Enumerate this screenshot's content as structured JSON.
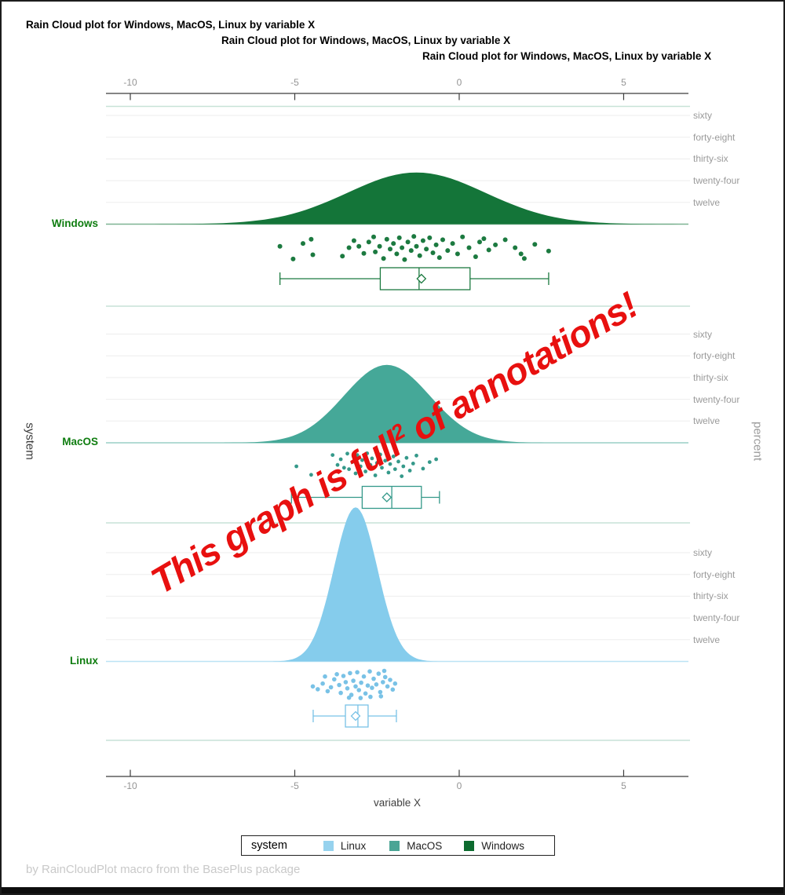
{
  "titles": [
    "Rain Cloud plot for Windows, MacOS, Linux by variable X",
    "Rain Cloud plot for Windows, MacOS, Linux by variable X",
    "Rain Cloud plot for Windows, MacOS, Linux by variable X"
  ],
  "annotation": {
    "prefix": "This graph is full",
    "sup": "2",
    "suffix": " of annotations!",
    "color": "#e8100f"
  },
  "legend": {
    "title": "system",
    "items": [
      {
        "label": "Linux",
        "color": "#96d2ee"
      },
      {
        "label": "MacOS",
        "color": "#4aa595"
      },
      {
        "label": "Windows",
        "color": "#0d6b2f"
      }
    ]
  },
  "footer": {
    "text": "by RainCloudPlot macro from the BasePlus package"
  },
  "colors": {
    "category_label": "#0f7d10",
    "grid": "#ededed",
    "separator": "#c7e2d7",
    "axis": "#3c3c3c",
    "tick_text": "#949494"
  },
  "chart_data": {
    "type": "raincloud",
    "title": "Rain Cloud plot for Windows, MacOS, Linux by variable X",
    "x_axis": {
      "label": "variable X",
      "tick_labels": [
        "-10",
        "-5",
        "0",
        "5"
      ],
      "tick_values": [
        -10,
        -5,
        0,
        5
      ],
      "range": [
        -10.74,
        6.97
      ]
    },
    "y_axis": {
      "label": "system",
      "categories": [
        "Windows",
        "MacOS",
        "Linux"
      ]
    },
    "y2_axis": {
      "label": "percent",
      "tick_labels": [
        "sixty",
        "forty-eight",
        "thirty-six",
        "twenty-four",
        "twelve"
      ],
      "tick_values": [
        60,
        48,
        36,
        24,
        12
      ]
    },
    "legend_position": "bottom",
    "grid": true,
    "groups": [
      {
        "name": "Windows",
        "fill": "#147539",
        "stroke": "#1c7a40",
        "point_radius": 3,
        "density": {
          "mean": -1.3,
          "sd": 2.1,
          "peak_percent": 28.5
        },
        "box": {
          "whisker_low": -5.45,
          "q1": -2.4,
          "median": -1.22,
          "mean": -1.15,
          "q3": 0.33,
          "whisker_high": 2.72
        },
        "points": [
          [
            -5.45,
            0.45
          ],
          [
            -5.05,
            0.9
          ],
          [
            -4.75,
            0.35
          ],
          [
            -4.5,
            0.2
          ],
          [
            -4.45,
            0.75
          ],
          [
            -3.55,
            0.8
          ],
          [
            -3.35,
            0.5
          ],
          [
            -3.2,
            0.25
          ],
          [
            -3.05,
            0.45
          ],
          [
            -2.9,
            0.7
          ],
          [
            -2.75,
            0.3
          ],
          [
            -2.6,
            0.12
          ],
          [
            -2.55,
            0.65
          ],
          [
            -2.42,
            0.45
          ],
          [
            -2.3,
            0.88
          ],
          [
            -2.2,
            0.2
          ],
          [
            -2.1,
            0.55
          ],
          [
            -2.0,
            0.35
          ],
          [
            -1.9,
            0.72
          ],
          [
            -1.82,
            0.15
          ],
          [
            -1.74,
            0.5
          ],
          [
            -1.66,
            0.92
          ],
          [
            -1.56,
            0.3
          ],
          [
            -1.46,
            0.6
          ],
          [
            -1.38,
            0.1
          ],
          [
            -1.3,
            0.45
          ],
          [
            -1.2,
            0.78
          ],
          [
            -1.1,
            0.25
          ],
          [
            -1.0,
            0.55
          ],
          [
            -0.9,
            0.15
          ],
          [
            -0.8,
            0.68
          ],
          [
            -0.7,
            0.4
          ],
          [
            -0.6,
            0.85
          ],
          [
            -0.5,
            0.22
          ],
          [
            -0.35,
            0.6
          ],
          [
            -0.2,
            0.35
          ],
          [
            -0.05,
            0.72
          ],
          [
            0.1,
            0.12
          ],
          [
            0.3,
            0.5
          ],
          [
            0.5,
            0.82
          ],
          [
            0.62,
            0.3
          ],
          [
            0.75,
            0.18
          ],
          [
            0.9,
            0.58
          ],
          [
            1.1,
            0.4
          ],
          [
            1.4,
            0.22
          ],
          [
            1.7,
            0.5
          ],
          [
            1.88,
            0.72
          ],
          [
            1.98,
            0.88
          ],
          [
            2.3,
            0.38
          ],
          [
            2.72,
            0.62
          ]
        ]
      },
      {
        "name": "MacOS",
        "fill": "#45A898",
        "stroke": "#35998a",
        "point_radius": 2.4,
        "density": {
          "mean": -2.2,
          "sd": 1.3,
          "peak_percent": 43
        },
        "box": {
          "whisker_low": -5.1,
          "q1": -2.95,
          "median": -2.05,
          "mean": -2.2,
          "q3": -1.15,
          "whisker_high": -0.6
        },
        "points": [
          [
            -4.95,
            0.5
          ],
          [
            -4.5,
            0.8
          ],
          [
            -3.85,
            0.1
          ],
          [
            -3.7,
            0.45
          ],
          [
            -3.6,
            0.25
          ],
          [
            -3.5,
            0.55
          ],
          [
            -3.4,
            0.05
          ],
          [
            -3.35,
            0.6
          ],
          [
            -3.25,
            0.35
          ],
          [
            -3.15,
            0.75
          ],
          [
            -3.1,
            0.1
          ],
          [
            -3.0,
            0.5
          ],
          [
            -2.95,
            0.28
          ],
          [
            -2.85,
            0.68
          ],
          [
            -2.8,
            0.04
          ],
          [
            -2.7,
            0.45
          ],
          [
            -2.65,
            0.22
          ],
          [
            -2.55,
            0.82
          ],
          [
            -2.5,
            0.38
          ],
          [
            -2.4,
            0.08
          ],
          [
            -2.35,
            0.55
          ],
          [
            -2.25,
            0.3
          ],
          [
            -2.15,
            0.72
          ],
          [
            -2.1,
            0.42
          ],
          [
            -2.0,
            0.15
          ],
          [
            -1.95,
            0.6
          ],
          [
            -1.85,
            0.33
          ],
          [
            -1.75,
            0.85
          ],
          [
            -1.7,
            0.5
          ],
          [
            -1.6,
            0.2
          ],
          [
            -1.5,
            0.65
          ],
          [
            -1.4,
            0.4
          ],
          [
            -1.3,
            0.12
          ],
          [
            -1.1,
            0.58
          ],
          [
            -0.9,
            0.35
          ],
          [
            -0.7,
            0.25
          ]
        ]
      },
      {
        "name": "Linux",
        "fill": "#85CCEC",
        "stroke": "#79c2e6",
        "point_radius": 2.8,
        "density": {
          "mean": -3.15,
          "sd": 0.66,
          "peak_percent": 85
        },
        "box": {
          "whisker_low": -4.44,
          "q1": -3.46,
          "median": -3.08,
          "mean": -3.15,
          "q3": -2.77,
          "whisker_high": -1.91
        },
        "points": [
          [
            -4.45,
            0.55
          ],
          [
            -4.3,
            0.65
          ],
          [
            -4.15,
            0.45
          ],
          [
            -4.0,
            0.72
          ],
          [
            -3.9,
            0.58
          ],
          [
            -3.8,
            0.3
          ],
          [
            -3.72,
            0.12
          ],
          [
            -3.65,
            0.5
          ],
          [
            -3.6,
            0.78
          ],
          [
            -3.52,
            0.18
          ],
          [
            -3.45,
            0.4
          ],
          [
            -3.4,
            0.62
          ],
          [
            -3.32,
            0.08
          ],
          [
            -3.28,
            0.85
          ],
          [
            -3.22,
            0.35
          ],
          [
            -3.15,
            0.55
          ],
          [
            -3.1,
            0.05
          ],
          [
            -3.05,
            0.68
          ],
          [
            -2.98,
            0.42
          ],
          [
            -2.9,
            0.2
          ],
          [
            -2.85,
            0.8
          ],
          [
            -2.78,
            0.52
          ],
          [
            -2.72,
            0.02
          ],
          [
            -2.65,
            0.6
          ],
          [
            -2.6,
            0.28
          ],
          [
            -2.52,
            0.48
          ],
          [
            -2.45,
            0.1
          ],
          [
            -2.4,
            0.75
          ],
          [
            -2.32,
            0.4
          ],
          [
            -2.25,
            0.22
          ],
          [
            -2.18,
            0.55
          ],
          [
            -2.1,
            0.32
          ],
          [
            -2.02,
            0.66
          ],
          [
            -1.95,
            0.45
          ],
          [
            -3.35,
            0.95
          ],
          [
            -3.0,
            0.96
          ],
          [
            -2.7,
            0.92
          ],
          [
            -2.38,
            0.9
          ],
          [
            -4.08,
            0.2
          ],
          [
            -2.28,
            0.0
          ]
        ]
      }
    ]
  }
}
